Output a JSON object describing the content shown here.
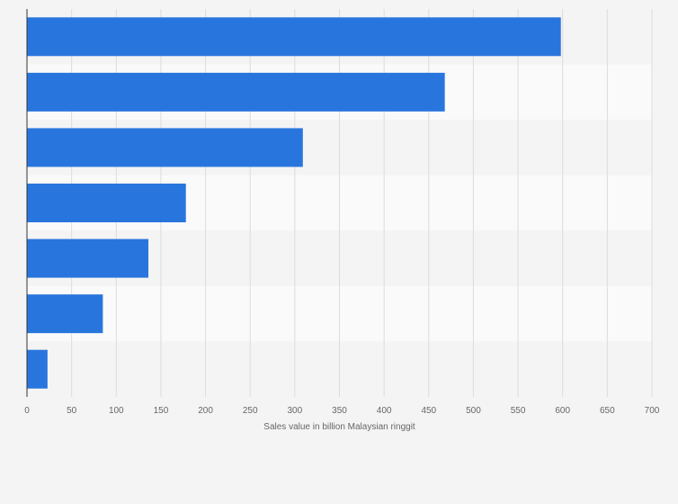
{
  "chart_data": {
    "type": "bar",
    "orientation": "horizontal",
    "title": "",
    "xlabel": "Sales value in billion Malaysian ringgit",
    "ylabel": "",
    "categories": [
      "",
      "",
      "",
      "",
      "",
      "",
      ""
    ],
    "values": [
      598,
      468,
      309,
      178,
      136,
      85,
      23
    ],
    "xlim": [
      0,
      700
    ],
    "xticks": [
      0,
      50,
      100,
      150,
      200,
      250,
      300,
      350,
      400,
      450,
      500,
      550,
      600,
      650,
      700
    ],
    "grid": true,
    "legend": "none",
    "colors": {
      "bar": "#2876dd",
      "background": "#f4f4f4",
      "band_light": "#fafafa",
      "band_dark": "#f4f4f4",
      "grid": "#dcdcdc",
      "axis": "#333333",
      "text": "#666666"
    }
  }
}
